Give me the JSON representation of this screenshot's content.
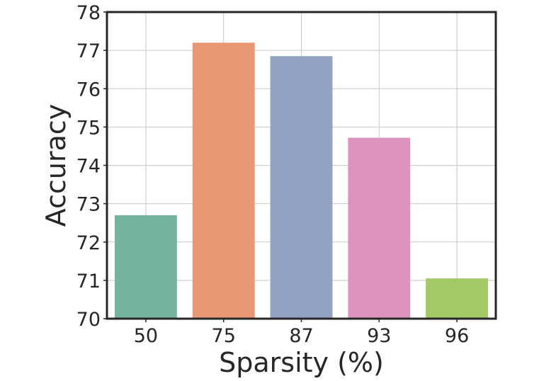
{
  "chart_data": {
    "type": "bar",
    "title": "",
    "xlabel": "Sparsity (%)",
    "ylabel": "Accuracy",
    "categories": [
      "50",
      "75",
      "87",
      "93",
      "96"
    ],
    "values": [
      72.7,
      77.2,
      76.85,
      74.72,
      71.05
    ],
    "colors": [
      "#74b49f",
      "#e89773",
      "#92a3c2",
      "#dc94bf",
      "#a2c965"
    ],
    "ylim": [
      70,
      78
    ],
    "yticks": [
      "70",
      "71",
      "72",
      "73",
      "74",
      "75",
      "76",
      "77",
      "78"
    ],
    "grid": true,
    "legend": "none"
  }
}
